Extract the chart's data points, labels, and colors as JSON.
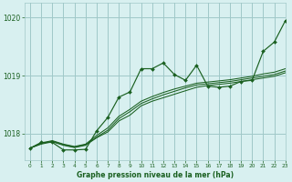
{
  "title": "Graphe pression niveau de la mer (hPa)",
  "background_color": "#d8f0f0",
  "grid_color": "#a0c8c8",
  "line_color": "#1a6020",
  "xlim": [
    -0.5,
    23
  ],
  "ylim": [
    1017.55,
    1020.25
  ],
  "yticks": [
    1018,
    1019,
    1020
  ],
  "xticks": [
    0,
    1,
    2,
    3,
    4,
    5,
    6,
    7,
    8,
    9,
    10,
    11,
    12,
    13,
    14,
    15,
    16,
    17,
    18,
    19,
    20,
    21,
    22,
    23
  ],
  "series_jagged": [
    1017.75,
    1017.85,
    1017.85,
    1017.72,
    1017.72,
    1017.73,
    1018.05,
    1018.28,
    1018.63,
    1018.72,
    1019.12,
    1019.12,
    1019.22,
    1019.02,
    1018.92,
    1019.18,
    1018.82,
    1018.8,
    1018.82,
    1018.9,
    1018.92,
    1019.42,
    1019.58,
    1019.95
  ],
  "series_smooth1": [
    1017.75,
    1017.82,
    1017.86,
    1017.8,
    1017.76,
    1017.8,
    1017.93,
    1018.03,
    1018.22,
    1018.32,
    1018.48,
    1018.56,
    1018.62,
    1018.68,
    1018.74,
    1018.8,
    1018.83,
    1018.85,
    1018.87,
    1018.9,
    1018.93,
    1018.96,
    1018.99,
    1019.05
  ],
  "series_smooth2": [
    1017.75,
    1017.83,
    1017.87,
    1017.81,
    1017.77,
    1017.81,
    1017.94,
    1018.06,
    1018.26,
    1018.38,
    1018.52,
    1018.6,
    1018.67,
    1018.73,
    1018.79,
    1018.84,
    1018.86,
    1018.88,
    1018.9,
    1018.93,
    1018.96,
    1018.99,
    1019.02,
    1019.08
  ],
  "series_smooth3": [
    1017.75,
    1017.84,
    1017.88,
    1017.82,
    1017.78,
    1017.82,
    1017.97,
    1018.1,
    1018.3,
    1018.42,
    1018.56,
    1018.64,
    1018.71,
    1018.77,
    1018.82,
    1018.87,
    1018.89,
    1018.91,
    1018.93,
    1018.96,
    1018.99,
    1019.03,
    1019.06,
    1019.12
  ]
}
